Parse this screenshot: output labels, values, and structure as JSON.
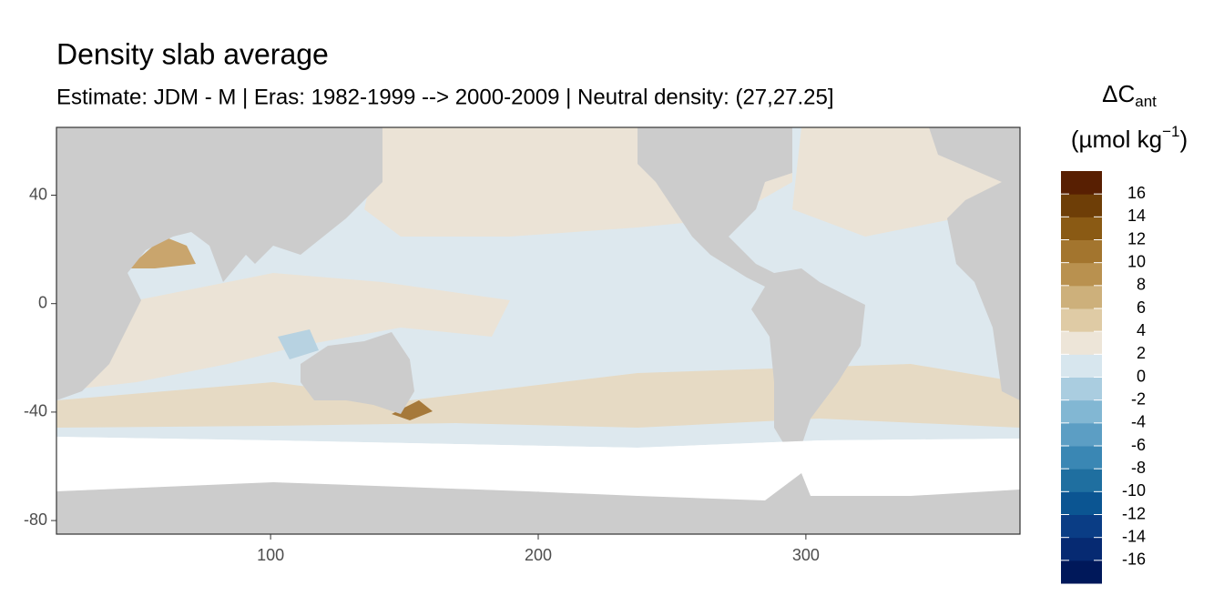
{
  "chart_data": {
    "type": "map",
    "title": "Density slab average",
    "subtitle": "Estimate: JDM - M | Eras: 1982-1999 --> 2000-2009 | Neutral density: (27,27.25]",
    "xlim": [
      20,
      380
    ],
    "ylim": [
      -85,
      65
    ],
    "xticks": [
      100,
      200,
      300
    ],
    "yticks": [
      40,
      0,
      -40,
      -80
    ],
    "grid": true,
    "colorbar": {
      "title": "ΔC",
      "title_subscript": "ant",
      "unit": "(µmol kg",
      "unit_superscript": "−1",
      "unit_close": ")",
      "limits": [
        -18,
        18
      ],
      "ticks": [
        16,
        14,
        12,
        10,
        8,
        6,
        4,
        2,
        0,
        -2,
        -4,
        -6,
        -8,
        -10,
        -12,
        -14,
        -16
      ],
      "colors": [
        "#00185a",
        "#062a72",
        "#0a3d85",
        "#0b5592",
        "#1f6fa0",
        "#3a87b4",
        "#5c9ec4",
        "#82b7d3",
        "#aacde0",
        "#d7e6ee",
        "#ede5d8",
        "#dfcba5",
        "#cdb07b",
        "#b9914f",
        "#a3752e",
        "#8a5a14",
        "#6e3e07",
        "#581f02"
      ]
    }
  }
}
